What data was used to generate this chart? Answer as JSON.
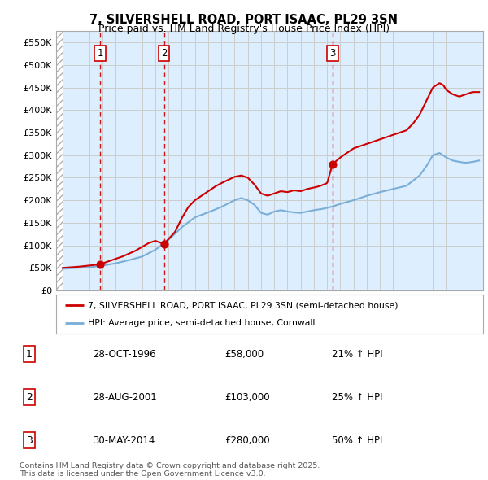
{
  "title_line1": "7, SILVERSHELL ROAD, PORT ISAAC, PL29 3SN",
  "title_line2": "Price paid vs. HM Land Registry's House Price Index (HPI)",
  "sale_dates_num": [
    1996.83,
    2001.66,
    2014.41
  ],
  "sale_prices": [
    58000,
    103000,
    280000
  ],
  "sale_labels": [
    "1",
    "2",
    "3"
  ],
  "legend_entries": [
    "7, SILVERSHELL ROAD, PORT ISAAC, PL29 3SN (semi-detached house)",
    "HPI: Average price, semi-detached house, Cornwall"
  ],
  "table_rows": [
    [
      "1",
      "28-OCT-1996",
      "£58,000",
      "21% ↑ HPI"
    ],
    [
      "2",
      "28-AUG-2001",
      "£103,000",
      "25% ↑ HPI"
    ],
    [
      "3",
      "30-MAY-2014",
      "£280,000",
      "50% ↑ HPI"
    ]
  ],
  "footnote": "Contains HM Land Registry data © Crown copyright and database right 2025.\nThis data is licensed under the Open Government Licence v3.0.",
  "ylim": [
    0,
    575000
  ],
  "xlim_start": 1993.5,
  "xlim_end": 2025.8,
  "yticks": [
    0,
    50000,
    100000,
    150000,
    200000,
    250000,
    300000,
    350000,
    400000,
    450000,
    500000,
    550000
  ],
  "ytick_labels": [
    "£0",
    "£50K",
    "£100K",
    "£150K",
    "£200K",
    "£250K",
    "£300K",
    "£350K",
    "£400K",
    "£450K",
    "£500K",
    "£550K"
  ],
  "grid_color": "#cccccc",
  "plot_bg": "#ddeeff",
  "red_color": "#cc0000",
  "blue_color": "#7aaed6",
  "dashed_line_color": "#cc0000",
  "hatch_region_end": 1994.0
}
